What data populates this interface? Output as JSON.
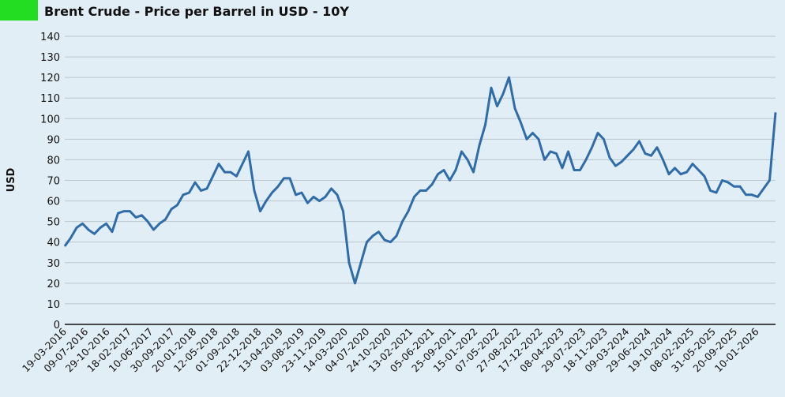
{
  "header": {
    "title": "Brent Crude - Price per Barrel in USD - 10Y"
  },
  "colors": {
    "badge": "#22dd22",
    "line": "#2f6ca8",
    "grid": "#b9c6cf",
    "axis": "#111111"
  },
  "chart_data": {
    "type": "line",
    "title": "Brent Crude - Price per Barrel in USD - 10Y",
    "xlabel": "",
    "ylabel": "USD",
    "ylim": [
      0,
      140
    ],
    "yticks": [
      0,
      10,
      20,
      30,
      40,
      50,
      60,
      70,
      80,
      90,
      100,
      110,
      120,
      130,
      140
    ],
    "grid": true,
    "x_tick_labels": [
      "19-03-2016",
      "09-07-2016",
      "29-10-2016",
      "18-02-2017",
      "10-06-2017",
      "30-09-2017",
      "20-01-2018",
      "12-05-2018",
      "01-09-2018",
      "22-12-2018",
      "13-04-2019",
      "03-08-2019",
      "23-11-2019",
      "14-03-2020",
      "04-07-2020",
      "24-10-2020",
      "13-02-2021",
      "05-06-2021",
      "25-09-2021",
      "15-01-2022",
      "07-05-2022",
      "27-08-2022",
      "17-12-2022",
      "08-04-2023",
      "29-07-2023",
      "18-11-2023",
      "09-03-2024",
      "29-06-2024",
      "19-10-2024",
      "08-02-2025",
      "31-05-2025",
      "20-09-2025",
      "10-01-2026"
    ],
    "series": [
      {
        "name": "Brent Crude",
        "x_start": "2016-03",
        "interval": "monthly",
        "values": [
          38,
          42,
          47,
          49,
          46,
          44,
          47,
          49,
          45,
          54,
          55,
          55,
          52,
          53,
          50,
          46,
          49,
          51,
          56,
          58,
          63,
          64,
          69,
          65,
          66,
          72,
          78,
          74,
          74,
          72,
          78,
          84,
          65,
          55,
          60,
          64,
          67,
          71,
          71,
          63,
          64,
          59,
          62,
          60,
          62,
          66,
          63,
          55,
          30,
          20,
          30,
          40,
          43,
          45,
          41,
          40,
          43,
          50,
          55,
          62,
          65,
          65,
          68,
          73,
          75,
          70,
          75,
          84,
          80,
          74,
          87,
          97,
          115,
          106,
          112,
          120,
          105,
          98,
          90,
          93,
          90,
          80,
          84,
          83,
          76,
          84,
          75,
          75,
          80,
          86,
          93,
          90,
          81,
          77,
          79,
          82,
          85,
          89,
          83,
          82,
          86,
          80,
          73,
          76,
          73,
          74,
          78,
          75,
          72,
          65,
          64,
          70,
          69,
          67,
          67,
          63,
          63,
          62,
          66,
          70,
          103
        ]
      }
    ]
  }
}
